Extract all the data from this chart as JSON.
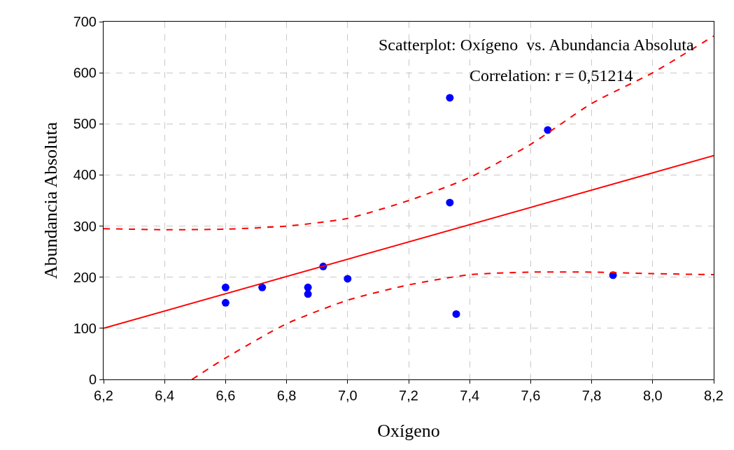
{
  "chart_data": {
    "type": "scatter",
    "xlabel": "Oxígeno",
    "ylabel": "Abundancia Absoluta",
    "annotations": [
      "Scatterplot: Oxígeno  vs. Abundancia Absoluta",
      "Correlation: r = 0,51214"
    ],
    "xlim": [
      6.2,
      8.2
    ],
    "ylim": [
      0,
      700
    ],
    "xticks": [
      {
        "value": 6.2,
        "label": "6,2"
      },
      {
        "value": 6.4,
        "label": "6,4"
      },
      {
        "value": 6.6,
        "label": "6,6"
      },
      {
        "value": 6.8,
        "label": "6,8"
      },
      {
        "value": 7.0,
        "label": "7,0"
      },
      {
        "value": 7.2,
        "label": "7,2"
      },
      {
        "value": 7.4,
        "label": "7,4"
      },
      {
        "value": 7.6,
        "label": "7,6"
      },
      {
        "value": 7.8,
        "label": "7,8"
      },
      {
        "value": 8.0,
        "label": "8,0"
      },
      {
        "value": 8.2,
        "label": "8,2"
      }
    ],
    "yticks": [
      0,
      100,
      200,
      300,
      400,
      500,
      600,
      700
    ],
    "grid": true,
    "series": [
      {
        "marker": "circle",
        "color": "#0000ff",
        "x": [
          6.6,
          6.6,
          6.72,
          6.87,
          6.87,
          6.92,
          7.0,
          7.335,
          7.335,
          7.356,
          7.656,
          7.87
        ],
        "values": [
          180,
          150,
          180,
          180,
          167,
          221,
          197,
          551,
          346,
          128,
          488,
          204
        ]
      },
      {
        "type": "line",
        "marker": "none",
        "line_style": "solid",
        "color": "#ff0000",
        "x": [
          6.2,
          8.2
        ],
        "values": [
          100,
          438
        ]
      },
      {
        "type": "line",
        "marker": "none",
        "line_style": "dashed",
        "color": "#ff0000",
        "x": [
          6.2,
          6.4,
          6.6,
          6.8,
          7.0,
          7.2,
          7.4,
          7.6,
          7.8,
          8.0,
          8.2
        ],
        "values": [
          295,
          293,
          294,
          300,
          315,
          350,
          395,
          460,
          540,
          600,
          672
        ]
      },
      {
        "type": "line",
        "marker": "none",
        "line_style": "dashed",
        "color": "#ff0000",
        "x": [
          6.49,
          6.6,
          6.8,
          7.0,
          7.2,
          7.4,
          7.6,
          7.8,
          8.0,
          8.2
        ],
        "values": [
          0,
          42,
          109,
          155,
          185,
          205,
          210,
          210,
          207,
          205
        ]
      }
    ]
  }
}
